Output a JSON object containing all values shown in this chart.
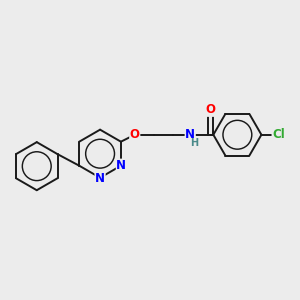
{
  "background_color": "#ececec",
  "bond_color": "#1a1a1a",
  "bond_width": 1.4,
  "atom_colors": {
    "N": "#0000ff",
    "O": "#ff0000",
    "Cl": "#33aa33",
    "H": "#4a8a8a",
    "C": "#1a1a1a"
  },
  "font_size_atoms": 8.5,
  "font_size_H": 7.0,
  "figsize": [
    3.0,
    3.0
  ],
  "dpi": 100
}
